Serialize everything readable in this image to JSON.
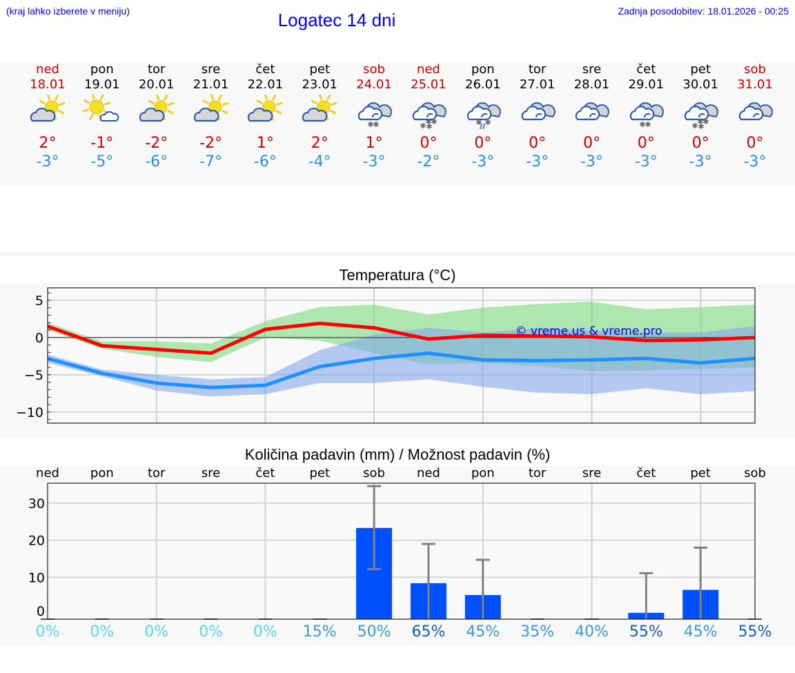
{
  "header": {
    "location_hint": "(kraj lahko izberete v meniju)",
    "title": "Logatec 14 dni",
    "last_update": "Zadnja posodobitev: 18.01.2026 - 00:25"
  },
  "days": [
    {
      "name": "ned",
      "date": "18.01",
      "weekend": true,
      "icon": "partly-cloudy-sun-icon",
      "tmax": "2°",
      "tmin": "-3°"
    },
    {
      "name": "pon",
      "date": "19.01",
      "weekend": false,
      "icon": "mostly-sunny-icon",
      "tmax": "-1°",
      "tmin": "-5°"
    },
    {
      "name": "tor",
      "date": "20.01",
      "weekend": false,
      "icon": "partly-cloudy-sun-icon",
      "tmax": "-2°",
      "tmin": "-6°"
    },
    {
      "name": "sre",
      "date": "21.01",
      "weekend": false,
      "icon": "partly-cloudy-sun-icon",
      "tmax": "-2°",
      "tmin": "-7°"
    },
    {
      "name": "čet",
      "date": "22.01",
      "weekend": false,
      "icon": "partly-cloudy-sun-icon",
      "tmax": "1°",
      "tmin": "-6°"
    },
    {
      "name": "pet",
      "date": "23.01",
      "weekend": false,
      "icon": "partly-cloudy-sun-icon",
      "tmax": "2°",
      "tmin": "-4°"
    },
    {
      "name": "sob",
      "date": "24.01",
      "weekend": true,
      "icon": "cloudy-light-snow-icon",
      "tmax": "1°",
      "tmin": "-3°"
    },
    {
      "name": "ned",
      "date": "25.01",
      "weekend": true,
      "icon": "cloudy-snow-icon",
      "tmax": "0°",
      "tmin": "-2°"
    },
    {
      "name": "pon",
      "date": "26.01",
      "weekend": false,
      "icon": "cloudy-sleet-icon",
      "tmax": "0°",
      "tmin": "-3°"
    },
    {
      "name": "tor",
      "date": "27.01",
      "weekend": false,
      "icon": "overcast-icon",
      "tmax": "0°",
      "tmin": "-3°"
    },
    {
      "name": "sre",
      "date": "28.01",
      "weekend": false,
      "icon": "overcast-icon",
      "tmax": "0°",
      "tmin": "-3°"
    },
    {
      "name": "čet",
      "date": "29.01",
      "weekend": false,
      "icon": "cloudy-light-snow-icon",
      "tmax": "0°",
      "tmin": "-3°"
    },
    {
      "name": "pet",
      "date": "30.01",
      "weekend": false,
      "icon": "cloudy-snow-icon",
      "tmax": "0°",
      "tmin": "-3°"
    },
    {
      "name": "sob",
      "date": "31.01",
      "weekend": true,
      "icon": "overcast-icon",
      "tmax": "0°",
      "tmin": "-3°"
    }
  ],
  "colors": {
    "weekend_red": "#cc0000",
    "tmin_blue": "#2a8ee8",
    "link_blue": "#0000ee",
    "max_line": "#ff0000",
    "min_line": "#1e90ff",
    "max_band": "#a8e6a8",
    "min_band": "#a9c3f2",
    "precip_bar": "#0050ff",
    "error_bar": "#808080"
  },
  "chart_data": [
    {
      "type": "line",
      "title": "Temperatura (°C)",
      "watermark": "© vreme.us & vreme.pro",
      "xlabel": "",
      "ylabel": "",
      "ylim": [
        -11.5,
        6.7
      ],
      "yticks": [
        5,
        0,
        -5,
        -10
      ],
      "ytick_labels": [
        "5",
        "0",
        "−5",
        "−10"
      ],
      "grid": true,
      "categories": [
        "18.01",
        "19.01",
        "20.01",
        "21.01",
        "22.01",
        "23.01",
        "24.01",
        "25.01",
        "26.01",
        "27.01",
        "28.01",
        "29.01",
        "30.01",
        "31.01"
      ],
      "series": [
        {
          "name": "Tmax",
          "color": "#ff0000",
          "values": [
            1.5,
            -1.1,
            -1.6,
            -2.1,
            1.1,
            1.9,
            1.3,
            -0.2,
            0.3,
            0.2,
            0.1,
            -0.4,
            -0.3,
            0.0
          ]
        },
        {
          "name": "Tmax range high",
          "values": [
            2.0,
            -0.5,
            -0.5,
            -0.8,
            2.2,
            4.1,
            4.4,
            3.1,
            4.0,
            4.5,
            4.8,
            3.8,
            4.1,
            4.4
          ]
        },
        {
          "name": "Tmax range low",
          "values": [
            1.0,
            -1.5,
            -2.6,
            -3.3,
            0.0,
            -0.4,
            -2.1,
            -3.6,
            -3.4,
            -3.8,
            -4.5,
            -4.4,
            -4.2,
            -4.0
          ]
        },
        {
          "name": "Tmin",
          "color": "#1e90ff",
          "values": [
            -2.8,
            -4.8,
            -6.1,
            -6.7,
            -6.4,
            -3.9,
            -2.8,
            -2.1,
            -3.0,
            -3.1,
            -3.0,
            -2.8,
            -3.4,
            -2.8
          ]
        },
        {
          "name": "Tmin range high",
          "values": [
            -2.3,
            -4.3,
            -5.0,
            -5.6,
            -5.3,
            -1.7,
            0.4,
            1.3,
            0.7,
            1.2,
            1.0,
            0.7,
            0.7,
            1.5
          ]
        },
        {
          "name": "Tmin range low",
          "values": [
            -3.4,
            -5.2,
            -7.1,
            -7.9,
            -7.6,
            -6.1,
            -6.1,
            -5.6,
            -6.6,
            -7.4,
            -7.6,
            -6.8,
            -7.6,
            -7.2
          ]
        }
      ]
    },
    {
      "type": "bar",
      "title": "Količina padavin (mm) / Možnost padavin (%)",
      "categories": [
        "ned",
        "pon",
        "tor",
        "sre",
        "čet",
        "pet",
        "sob",
        "ned",
        "pon",
        "tor",
        "sre",
        "čet",
        "pet",
        "sob"
      ],
      "values": [
        0,
        0,
        0,
        0,
        0,
        0,
        23.3,
        8.4,
        5.2,
        0,
        0,
        0.4,
        6.6,
        0
      ],
      "error_low": [
        0,
        0,
        0,
        0,
        0,
        0,
        12.2,
        0,
        0,
        0,
        0,
        0,
        0,
        0
      ],
      "error_high": [
        0,
        0,
        0,
        0,
        0,
        0,
        34.6,
        19.0,
        14.7,
        0,
        0,
        11.1,
        18.0,
        0
      ],
      "probability": [
        "0%",
        "0%",
        "0%",
        "0%",
        "0%",
        "15%",
        "50%",
        "65%",
        "45%",
        "35%",
        "40%",
        "55%",
        "45%",
        "55%"
      ],
      "probability_colors": [
        "#5ad6e6",
        "#5ad6e6",
        "#5ad6e6",
        "#5ad6e6",
        "#5ad6e6",
        "#3a9ad4",
        "#3a9ad4",
        "#1a5cb0",
        "#3a9ad4",
        "#3a9ad4",
        "#3a9ad4",
        "#1a5cb0",
        "#3a9ad4",
        "#1a5cb0"
      ],
      "ylim": [
        -1.5,
        36.7
      ],
      "yticks": [
        0,
        10,
        20,
        30
      ],
      "ytick_labels": [
        "0",
        "10",
        "20",
        "30"
      ],
      "grid": true
    }
  ]
}
